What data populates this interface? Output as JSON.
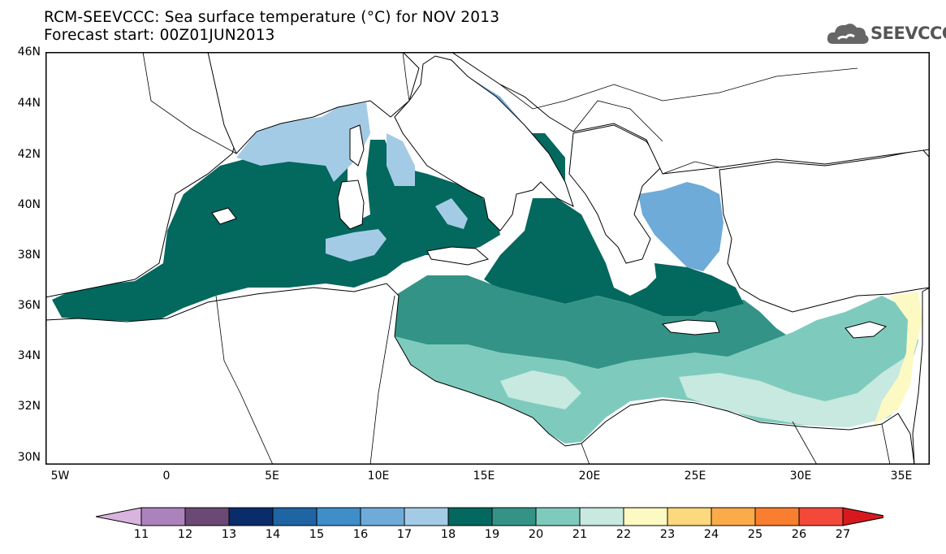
{
  "header": {
    "title": "RCM-SEEVCCC: Sea surface temperature (°C) for NOV 2013",
    "subtitle": "Forecast start: 00Z01JUN2013",
    "logo_text": "SEEVCCC"
  },
  "map": {
    "region": "Mediterranean Sea",
    "lon_range": [
      -5.5,
      36
    ],
    "lat_range": [
      30,
      46
    ],
    "lat_labels": [
      "46N",
      "44N",
      "42N",
      "40N",
      "38N",
      "36N",
      "34N",
      "32N",
      "30N"
    ],
    "lon_labels": [
      "5W",
      "0",
      "5E",
      "10E",
      "15E",
      "20E",
      "25E",
      "30E",
      "35E"
    ],
    "land_color": "#ffffff",
    "border_color": "#000000"
  },
  "colorbar": {
    "levels": [
      "11",
      "12",
      "13",
      "14",
      "15",
      "16",
      "17",
      "18",
      "19",
      "20",
      "21",
      "22",
      "23",
      "24",
      "25",
      "26",
      "27"
    ],
    "colors": [
      "#d9b4de",
      "#ac82bd",
      "#6a4a74",
      "#0a2c6b",
      "#1f64a3",
      "#3f8dc9",
      "#6fabd8",
      "#a4cbe6",
      "#03685d",
      "#349387",
      "#7ecbbd",
      "#c7e9e0",
      "#fdf9c3",
      "#fdd97e",
      "#fcab4b",
      "#f97e2f",
      "#f2493a",
      "#d7191f"
    ],
    "unit": "°C"
  },
  "sst_field": {
    "dominant_classes": {
      "western_basin": "18-19",
      "ligurian_tyrrhenian_north": "17-18",
      "adriatic": "16-18",
      "aegean_north": "16-18",
      "ionian_central": "19-21",
      "levantine": "20-22",
      "east_coast_levant": "22-23"
    }
  }
}
